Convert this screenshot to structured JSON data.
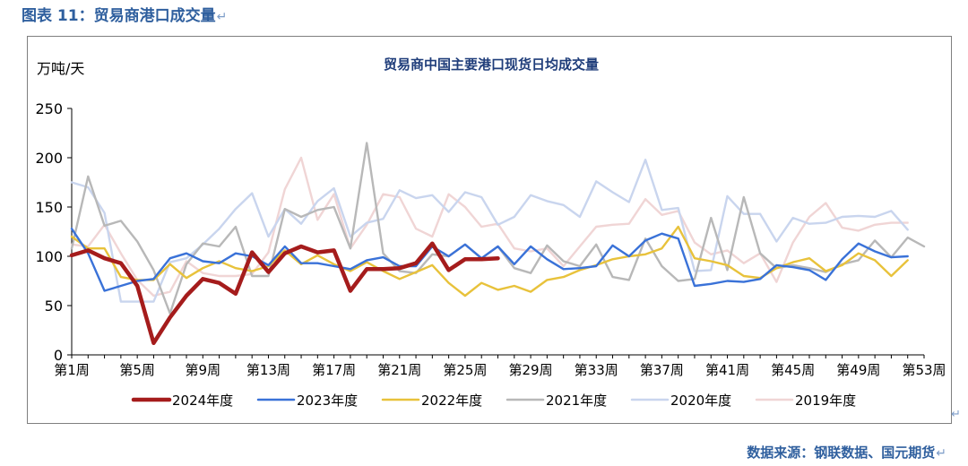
{
  "figure_caption": "图表 11：贸易商港口成交量",
  "source_note": "数据来源：钢联数据、国元期货",
  "paragraph_mark": "↵",
  "colors": {
    "caption": "#2f5f9e",
    "title": "#1f3d7a",
    "axis": "#000000",
    "series": [
      "#a51c1c",
      "#3a72d8",
      "#e8c23b",
      "#b8b8b8",
      "#c9d5ee",
      "#f0d5d5"
    ]
  },
  "chart_data": {
    "type": "line",
    "title": "贸易商中国主要港口现货日均成交量",
    "ylabel": "万吨/天",
    "xlabel": "",
    "ylim": [
      0,
      250
    ],
    "yticks": [
      0,
      50,
      100,
      150,
      200,
      250
    ],
    "xticks": [
      "第1周",
      "第5周",
      "第9周",
      "第13周",
      "第17周",
      "第21周",
      "第25周",
      "第29周",
      "第33周",
      "第37周",
      "第41周",
      "第45周",
      "第49周",
      "第53周"
    ],
    "grid": false,
    "legend_position": "bottom",
    "series": [
      {
        "name": "2024年度",
        "x": [
          1,
          2,
          3,
          4,
          5,
          6,
          7,
          8,
          9,
          10,
          11,
          12,
          13,
          14,
          15,
          16,
          17,
          18,
          19,
          20,
          21,
          22,
          23,
          24,
          25,
          26,
          27
        ],
        "values": [
          101,
          106,
          98,
          93,
          70,
          12,
          38,
          60,
          77,
          73,
          62,
          104,
          84,
          103,
          110,
          104,
          106,
          65,
          87,
          87,
          88,
          93,
          113,
          86,
          97,
          97,
          98
        ]
      },
      {
        "name": "2023年度",
        "x": [
          1,
          2,
          3,
          4,
          5,
          6,
          7,
          8,
          9,
          10,
          11,
          12,
          13,
          14,
          15,
          16,
          17,
          18,
          19,
          20,
          21,
          22,
          23,
          24,
          25,
          26,
          27,
          28,
          29,
          30,
          31,
          32,
          33,
          34,
          35,
          36,
          37,
          38,
          39,
          40,
          41,
          42,
          43,
          44,
          45,
          46,
          47,
          48,
          49,
          50,
          51,
          52
        ],
        "values": [
          128,
          103,
          65,
          70,
          75,
          77,
          98,
          103,
          95,
          93,
          103,
          100,
          91,
          110,
          93,
          93,
          90,
          87,
          96,
          99,
          90,
          90,
          110,
          100,
          112,
          98,
          110,
          92,
          110,
          97,
          87,
          88,
          90,
          111,
          100,
          116,
          123,
          118,
          70,
          72,
          75,
          74,
          77,
          91,
          89,
          86,
          76,
          97,
          113,
          105,
          99,
          100
        ]
      },
      {
        "name": "2022年度",
        "x": [
          1,
          2,
          3,
          4,
          5,
          6,
          7,
          8,
          9,
          10,
          11,
          12,
          13,
          14,
          15,
          16,
          17,
          18,
          19,
          20,
          21,
          22,
          23,
          24,
          25,
          26,
          27,
          28,
          29,
          30,
          31,
          32,
          33,
          34,
          35,
          36,
          37,
          38,
          39,
          40,
          41,
          42,
          43,
          44,
          45,
          46,
          47,
          48,
          49,
          50,
          51,
          52
        ],
        "values": [
          120,
          108,
          108,
          79,
          76,
          76,
          92,
          78,
          88,
          95,
          88,
          85,
          90,
          106,
          92,
          101,
          92,
          85,
          94,
          85,
          77,
          84,
          91,
          73,
          60,
          73,
          66,
          70,
          64,
          76,
          79,
          86,
          91,
          97,
          100,
          102,
          108,
          130,
          98,
          95,
          91,
          80,
          78,
          88,
          94,
          98,
          85,
          91,
          103,
          96,
          80,
          96
        ]
      },
      {
        "name": "2021年度",
        "x": [
          1,
          2,
          3,
          4,
          5,
          6,
          7,
          8,
          9,
          10,
          11,
          12,
          13,
          14,
          15,
          16,
          17,
          18,
          19,
          20,
          21,
          22,
          23,
          24,
          25,
          26,
          27,
          28,
          29,
          30,
          31,
          32,
          33,
          34,
          35,
          36,
          37,
          38,
          39,
          40,
          41,
          42,
          43,
          44,
          45,
          46,
          47,
          48,
          49,
          50,
          51,
          52,
          53
        ],
        "values": [
          108,
          181,
          131,
          136,
          115,
          86,
          42,
          92,
          113,
          110,
          130,
          80,
          80,
          148,
          140,
          147,
          150,
          108,
          215,
          103,
          85,
          83,
          102,
          100,
          112,
          98,
          110,
          88,
          83,
          111,
          95,
          90,
          112,
          79,
          76,
          118,
          90,
          75,
          77,
          139,
          86,
          160,
          103,
          88,
          91,
          88,
          84,
          92,
          96,
          116,
          99,
          119,
          110
        ]
      },
      {
        "name": "2020年度",
        "x": [
          1,
          2,
          3,
          4,
          5,
          6,
          7,
          8,
          9,
          10,
          11,
          12,
          13,
          14,
          15,
          16,
          17,
          18,
          19,
          20,
          21,
          22,
          23,
          24,
          25,
          26,
          27,
          28,
          29,
          30,
          31,
          32,
          33,
          34,
          35,
          36,
          37,
          38,
          39,
          40,
          41,
          42,
          43,
          44,
          45,
          46,
          47,
          48,
          49,
          50,
          51,
          52
        ],
        "values": [
          175,
          170,
          144,
          54,
          54,
          54,
          94,
          98,
          112,
          128,
          148,
          164,
          120,
          148,
          133,
          156,
          169,
          120,
          134,
          138,
          167,
          159,
          162,
          145,
          165,
          160,
          132,
          140,
          162,
          156,
          152,
          140,
          176,
          165,
          155,
          198,
          147,
          149,
          85,
          86,
          161,
          143,
          143,
          115,
          139,
          133,
          134,
          140,
          141,
          140,
          146,
          127
        ]
      },
      {
        "name": "2019年度",
        "x": [
          1,
          2,
          3,
          4,
          5,
          6,
          7,
          8,
          9,
          10,
          11,
          12,
          13,
          14,
          15,
          16,
          17,
          18,
          19,
          20,
          21,
          22,
          23,
          24,
          25,
          26,
          27,
          28,
          29,
          30,
          31,
          32,
          33,
          34,
          35,
          36,
          37,
          38,
          39,
          40,
          41,
          42,
          43,
          44,
          45,
          46,
          47,
          48,
          49,
          50,
          51,
          52
        ],
        "values": [
          112,
          110,
          132,
          103,
          76,
          60,
          64,
          95,
          83,
          80,
          80,
          82,
          104,
          168,
          200,
          137,
          163,
          108,
          132,
          163,
          160,
          128,
          120,
          163,
          150,
          130,
          133,
          108,
          105,
          108,
          90,
          110,
          130,
          132,
          133,
          158,
          142,
          146,
          114,
          102,
          106,
          93,
          103,
          74,
          114,
          140,
          154,
          129,
          126,
          132,
          134,
          134
        ]
      }
    ]
  }
}
